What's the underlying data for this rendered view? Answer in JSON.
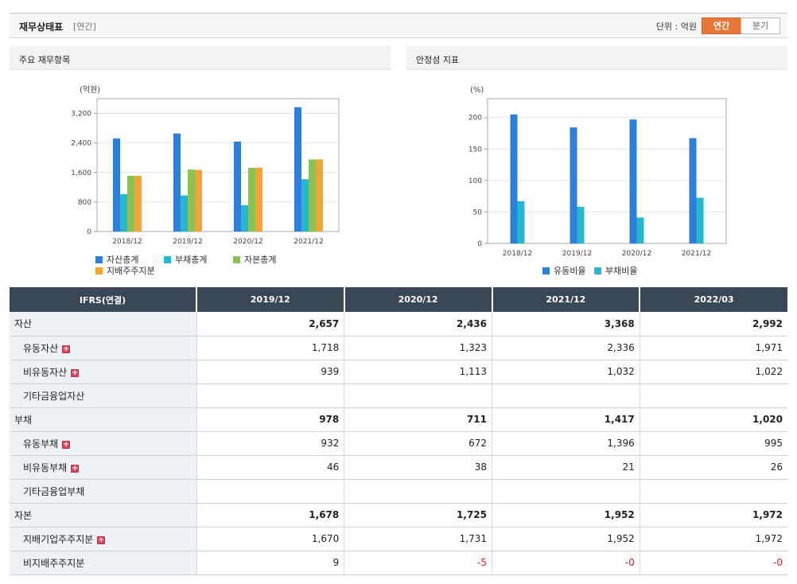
{
  "header": {
    "title": "재무상태표",
    "subtitle": "[연간]",
    "unit_label": "단위 : 억원",
    "btn_annual": "연간",
    "btn_quarter": "분기"
  },
  "left_panel": {
    "title": "주요 재무항목"
  },
  "right_panel": {
    "title": "안정성 지표"
  },
  "colors": {
    "blue": "#2e7fd9",
    "teal": "#24b9d0",
    "green": "#8cc153",
    "orange": "#f7a334"
  },
  "chart_data": [
    {
      "type": "bar",
      "ylabel": "(억원)",
      "categories": [
        "2018/12",
        "2019/12",
        "2020/12",
        "2021/12"
      ],
      "ylim": [
        0,
        3600
      ],
      "yticks": [
        0,
        800,
        1600,
        2400,
        3200
      ],
      "ytick_labels": [
        "0",
        "800",
        "1,600",
        "2,400",
        "3,200"
      ],
      "grid": true,
      "legend_placement": "bottom",
      "series": [
        {
          "name": "자산총계",
          "color": "#2e7fd9",
          "values": [
            2520,
            2657,
            2436,
            3368
          ]
        },
        {
          "name": "부채총계",
          "color": "#24b9d0",
          "values": [
            1010,
            978,
            711,
            1417
          ]
        },
        {
          "name": "자본총계",
          "color": "#8cc153",
          "values": [
            1510,
            1678,
            1725,
            1952
          ]
        },
        {
          "name": "지배주주지분",
          "color": "#f7a334",
          "values": [
            1510,
            1670,
            1731,
            1952
          ]
        }
      ]
    },
    {
      "type": "bar",
      "ylabel": "(%)",
      "categories": [
        "2018/12",
        "2019/12",
        "2020/12",
        "2021/12"
      ],
      "ylim": [
        0,
        230
      ],
      "yticks": [
        0,
        50,
        100,
        150,
        200
      ],
      "ytick_labels": [
        "0",
        "50",
        "100",
        "150",
        "200"
      ],
      "grid": true,
      "legend_placement": "bottom",
      "series": [
        {
          "name": "유동비율",
          "color": "#2e7fd9",
          "values": [
            205,
            184.3,
            196.9,
            167.3
          ]
        },
        {
          "name": "부채비율",
          "color": "#24b9d0",
          "values": [
            67,
            58.3,
            41.2,
            72.6
          ]
        }
      ]
    }
  ],
  "table": {
    "corner": "IFRS(연결)",
    "columns": [
      "2019/12",
      "2020/12",
      "2021/12",
      "2022/03"
    ],
    "rows": [
      {
        "label": "자산",
        "level": "main",
        "plus": false,
        "values": [
          "2,657",
          "2,436",
          "3,368",
          "2,992"
        ]
      },
      {
        "label": "유동자산",
        "level": "sub",
        "plus": true,
        "values": [
          "1,718",
          "1,323",
          "2,336",
          "1,971"
        ]
      },
      {
        "label": "비유동자산",
        "level": "sub",
        "plus": true,
        "values": [
          "939",
          "1,113",
          "1,032",
          "1,022"
        ]
      },
      {
        "label": "기타금융업자산",
        "level": "sub",
        "plus": false,
        "values": [
          "",
          "",
          "",
          ""
        ]
      },
      {
        "label": "부채",
        "level": "main",
        "plus": false,
        "values": [
          "978",
          "711",
          "1,417",
          "1,020"
        ]
      },
      {
        "label": "유동부채",
        "level": "sub",
        "plus": true,
        "values": [
          "932",
          "672",
          "1,396",
          "995"
        ]
      },
      {
        "label": "비유동부채",
        "level": "sub",
        "plus": true,
        "values": [
          "46",
          "38",
          "21",
          "26"
        ]
      },
      {
        "label": "기타금융업부채",
        "level": "sub",
        "plus": false,
        "values": [
          "",
          "",
          "",
          ""
        ]
      },
      {
        "label": "자본",
        "level": "main",
        "plus": false,
        "values": [
          "1,678",
          "1,725",
          "1,952",
          "1,972"
        ]
      },
      {
        "label": "지배기업주주지분",
        "level": "sub",
        "plus": true,
        "values": [
          "1,670",
          "1,731",
          "1,952",
          "1,972"
        ]
      },
      {
        "label": "비지배주주지분",
        "level": "sub",
        "plus": false,
        "values": [
          "9",
          "-5",
          "-0",
          "-0"
        ]
      }
    ]
  }
}
